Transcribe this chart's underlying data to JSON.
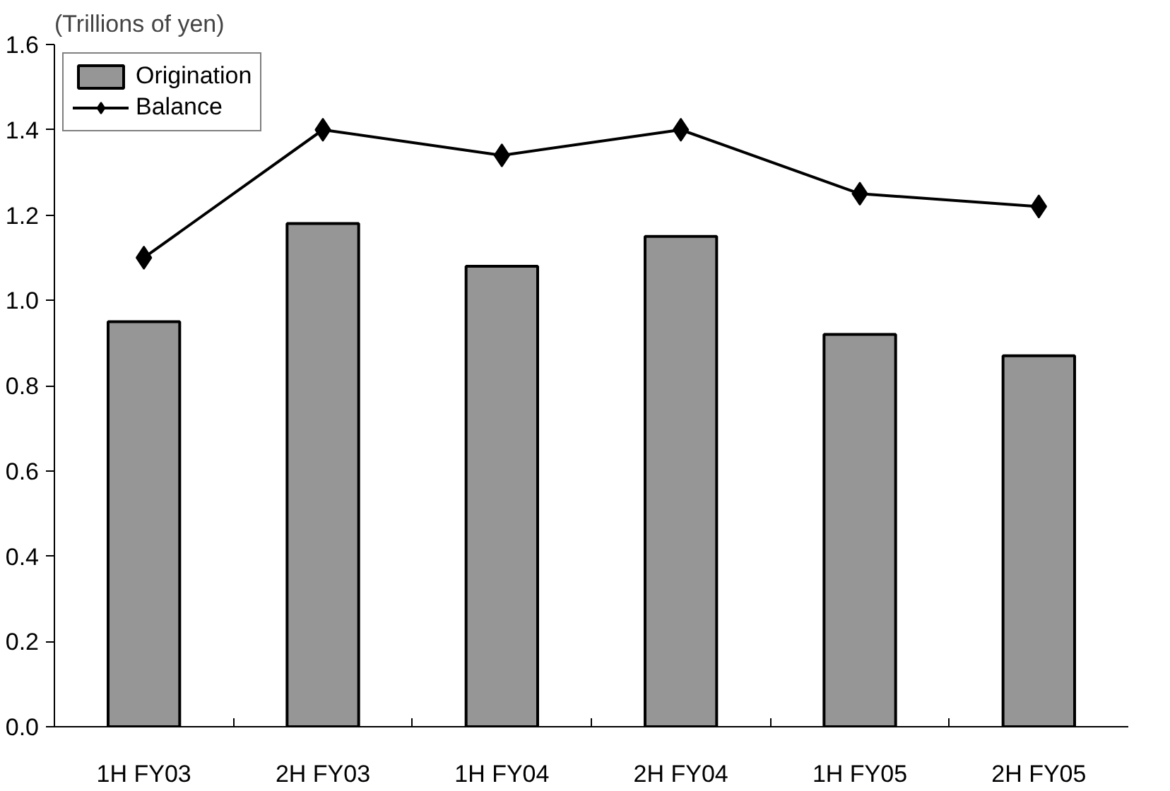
{
  "chart_data": {
    "type": "bar",
    "ylabel": "(Trillions of yen)",
    "categories": [
      "1H FY03",
      "2H FY03",
      "1H FY04",
      "2H FY04",
      "1H FY05",
      "2H FY05"
    ],
    "series": [
      {
        "name": "Origination",
        "color": "#969696",
        "values": [
          0.95,
          1.18,
          1.08,
          1.15,
          0.92,
          0.87
        ]
      },
      {
        "name": "Balance",
        "type": "line",
        "color": "#000000",
        "marker": "diamond",
        "values": [
          1.1,
          1.4,
          1.34,
          1.4,
          1.25,
          1.22
        ]
      }
    ],
    "ylim": [
      0,
      1.6
    ],
    "yticks": [
      {
        "value": 0,
        "label": "0.0"
      },
      0.2,
      0.4,
      0.6,
      0.8,
      {
        "value": 1,
        "label": "1.0"
      },
      1.2,
      1.4,
      1.6
    ],
    "grid": false,
    "legend": "top left"
  }
}
